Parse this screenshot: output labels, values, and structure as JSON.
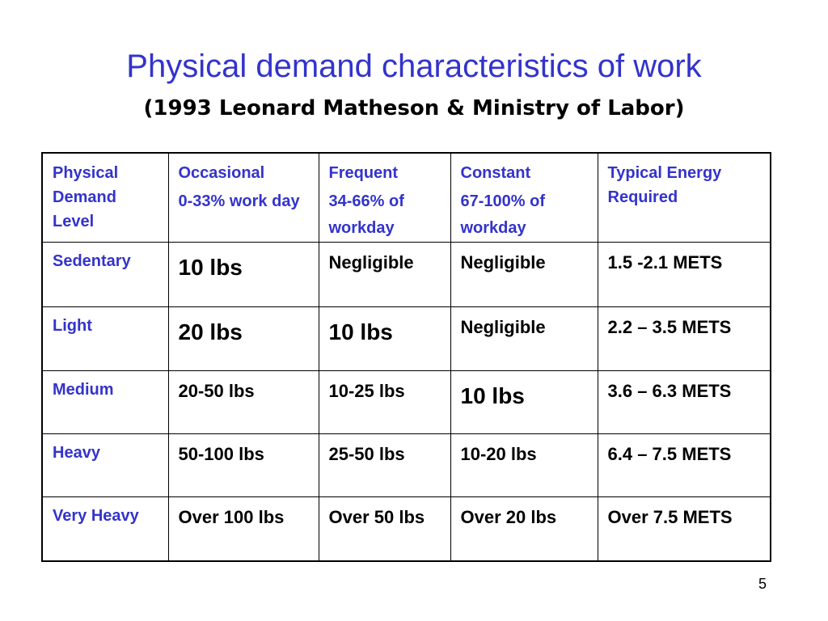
{
  "slide": {
    "title": "Physical demand characteristics of work",
    "subtitle": "(1993 Leonard Matheson & Ministry of Labor)",
    "page_number": "5"
  },
  "table": {
    "header": {
      "level": "Physical Demand Level",
      "occasional": "Occasional",
      "occasional_sub": "0-33% work day",
      "frequent": "Frequent",
      "frequent_sub": "34-66% of workday",
      "constant": "Constant",
      "constant_sub": "67-100% of workday",
      "energy": "Typical Energy Required"
    },
    "rows": [
      {
        "level": "Sedentary",
        "occasional": "10 lbs",
        "frequent": "Negligible",
        "constant": "Negligible",
        "energy": "1.5 -2.1 METS"
      },
      {
        "level": "Light",
        "occasional": "20 lbs",
        "frequent": "10 lbs",
        "constant": "Negligible",
        "energy": "2.2 – 3.5 METS"
      },
      {
        "level": "Medium",
        "occasional": "20-50 lbs",
        "frequent": "10-25 lbs",
        "constant": "10 lbs",
        "energy": "3.6 – 6.3 METS"
      },
      {
        "level": "Heavy",
        "occasional": "50-100 lbs",
        "frequent": "25-50 lbs",
        "constant": "10-20 lbs",
        "energy": "6.4 – 7.5 METS"
      },
      {
        "level": "Very Heavy",
        "occasional": "Over 100 lbs",
        "frequent": "Over 50 lbs",
        "constant": "Over 20 lbs",
        "energy": "Over 7.5 METS"
      }
    ]
  },
  "colors": {
    "accent": "#3333cc",
    "text": "#000000",
    "background": "#ffffff"
  }
}
